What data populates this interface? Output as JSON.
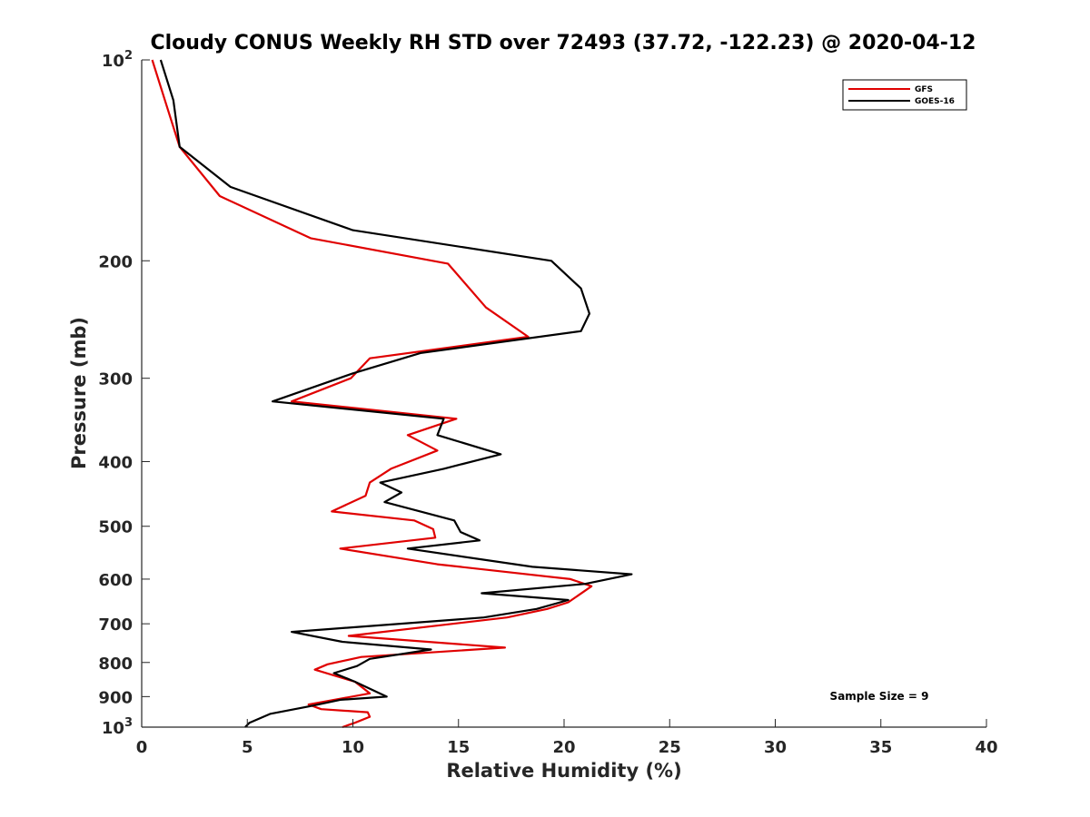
{
  "chart_data": {
    "type": "line",
    "title": "Cloudy CONUS Weekly RH STD over 72493 (37.72, -122.23) @ 2020-04-12",
    "xlabel": "Relative Humidity (%)",
    "ylabel": "Pressure (mb)",
    "xlim": [
      0,
      40
    ],
    "ylim": [
      100,
      1000
    ],
    "y_scale": "log",
    "y_reversed": true,
    "x_ticks": [
      "0",
      "5",
      "10",
      "15",
      "20",
      "25",
      "30",
      "35",
      "40"
    ],
    "y_ticks": [
      {
        "value": 100,
        "base": "10",
        "exp": "2"
      },
      {
        "value": 200,
        "label": "200"
      },
      {
        "value": 300,
        "label": "300"
      },
      {
        "value": 400,
        "label": "400"
      },
      {
        "value": 500,
        "label": "500"
      },
      {
        "value": 600,
        "label": "600"
      },
      {
        "value": 700,
        "label": "700"
      },
      {
        "value": 800,
        "label": "800"
      },
      {
        "value": 900,
        "label": "900"
      },
      {
        "value": 1000,
        "base": "10",
        "exp": "3"
      }
    ],
    "legend_position": "top-right",
    "grid": false,
    "annotation": "Sample Size = 9",
    "series": [
      {
        "name": "GFS",
        "color": "#e00000",
        "points": [
          [
            0.5,
            100
          ],
          [
            1.1,
            115
          ],
          [
            1.8,
            135
          ],
          [
            3.7,
            160
          ],
          [
            8,
            185
          ],
          [
            14.5,
            202
          ],
          [
            16.3,
            235
          ],
          [
            18.3,
            260
          ],
          [
            10.8,
            280
          ],
          [
            9.9,
            300
          ],
          [
            7.1,
            325
          ],
          [
            14.9,
            345
          ],
          [
            12.6,
            365
          ],
          [
            14,
            385
          ],
          [
            11.8,
            410
          ],
          [
            10.8,
            430
          ],
          [
            10.6,
            450
          ],
          [
            9,
            475
          ],
          [
            12.9,
            490
          ],
          [
            13.8,
            505
          ],
          [
            13.9,
            520
          ],
          [
            9.4,
            540
          ],
          [
            14,
            570
          ],
          [
            20.3,
            600
          ],
          [
            21.3,
            615
          ],
          [
            20.2,
            650
          ],
          [
            19.2,
            665
          ],
          [
            17.3,
            685
          ],
          [
            9.8,
            730
          ],
          [
            17.2,
            760
          ],
          [
            10.4,
            785
          ],
          [
            8.8,
            805
          ],
          [
            8.2,
            820
          ],
          [
            10.1,
            855
          ],
          [
            10.8,
            890
          ],
          [
            7.9,
            925
          ],
          [
            8.5,
            940
          ],
          [
            10.7,
            950
          ],
          [
            10.8,
            965
          ],
          [
            10.1,
            985
          ],
          [
            9.5,
            1000
          ]
        ]
      },
      {
        "name": "GOES-16",
        "color": "#000000",
        "points": [
          [
            0.9,
            100
          ],
          [
            1.5,
            115
          ],
          [
            1.8,
            135
          ],
          [
            4.2,
            155
          ],
          [
            10,
            180
          ],
          [
            19.4,
            200
          ],
          [
            20.8,
            220
          ],
          [
            21.2,
            240
          ],
          [
            20.8,
            255
          ],
          [
            13.2,
            275
          ],
          [
            10,
            295
          ],
          [
            6.2,
            325
          ],
          [
            14.3,
            345
          ],
          [
            14,
            365
          ],
          [
            17,
            390
          ],
          [
            14.3,
            410
          ],
          [
            11.3,
            430
          ],
          [
            12.3,
            445
          ],
          [
            11.5,
            460
          ],
          [
            14.8,
            490
          ],
          [
            15.1,
            510
          ],
          [
            16,
            525
          ],
          [
            12.6,
            540
          ],
          [
            18.5,
            575
          ],
          [
            23.2,
            590
          ],
          [
            21,
            610
          ],
          [
            16.1,
            630
          ],
          [
            20.2,
            645
          ],
          [
            18.7,
            665
          ],
          [
            16.2,
            685
          ],
          [
            7.1,
            720
          ],
          [
            9.5,
            745
          ],
          [
            13.7,
            765
          ],
          [
            10.8,
            790
          ],
          [
            10.2,
            810
          ],
          [
            9.1,
            830
          ],
          [
            10.1,
            855
          ],
          [
            11.6,
            900
          ],
          [
            9.4,
            910
          ],
          [
            8,
            930
          ],
          [
            6.1,
            955
          ],
          [
            5.1,
            985
          ],
          [
            4.9,
            1000
          ]
        ]
      }
    ]
  }
}
